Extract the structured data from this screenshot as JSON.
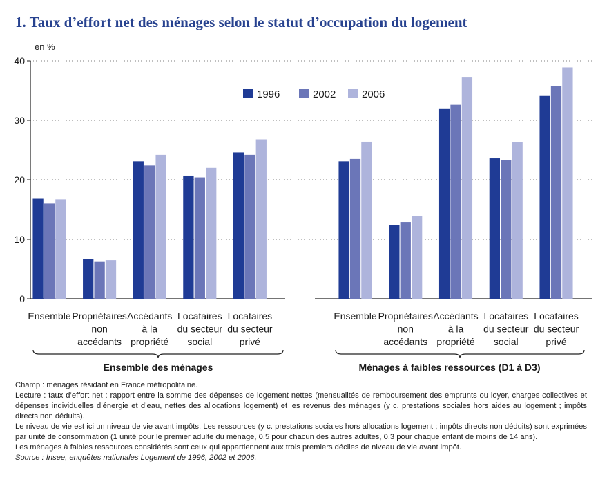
{
  "title": "1. Taux d’effort net des ménages selon le statut d’occupation du logement",
  "unit_label": "en %",
  "colors": {
    "1996": "#1f3b95",
    "2002": "#6b76b8",
    "2006": "#aeb4dc",
    "axis": "#222222"
  },
  "chart_data": {
    "type": "bar",
    "ylim": [
      0,
      40
    ],
    "yticks": [
      0,
      10,
      20,
      30,
      40
    ],
    "legend": {
      "position": "top-right",
      "entries": [
        "1996",
        "2002",
        "2006"
      ]
    },
    "categories": [
      [
        "Ensemble"
      ],
      [
        "Propriétaires",
        "non",
        "accédants"
      ],
      [
        "Accédants",
        "à la",
        "propriété"
      ],
      [
        "Locataires",
        "du secteur",
        "social"
      ],
      [
        "Locataires",
        "du secteur",
        "privé"
      ]
    ],
    "panels": [
      {
        "group_label": "Ensemble des ménages",
        "series": [
          {
            "name": "1996",
            "values": [
              16.8,
              6.7,
              23.1,
              20.7,
              24.6
            ]
          },
          {
            "name": "2002",
            "values": [
              16.0,
              6.2,
              22.4,
              20.4,
              24.2
            ]
          },
          {
            "name": "2006",
            "values": [
              16.7,
              6.5,
              24.2,
              22.0,
              26.8
            ]
          }
        ]
      },
      {
        "group_label": "Ménages à faibles ressources (D1 à D3)",
        "series": [
          {
            "name": "1996",
            "values": [
              23.1,
              12.4,
              32.0,
              23.6,
              34.1
            ]
          },
          {
            "name": "2002",
            "values": [
              23.5,
              12.9,
              32.6,
              23.3,
              35.8
            ]
          },
          {
            "name": "2006",
            "values": [
              26.4,
              13.9,
              37.2,
              26.3,
              38.9
            ]
          }
        ]
      }
    ]
  },
  "notes": {
    "champ": "Champ : ménages résidant en France métropolitaine.",
    "lecture": "Lecture : taux d’effort net : rapport entre la somme des dépenses de logement nettes (mensualités de remboursement des emprunts ou loyer, charges collectives et dépenses individuelles d’énergie et d’eau, nettes des allocations logement) et les revenus des ménages (y c. prestations sociales hors aides au logement ; impôts directs non déduits).",
    "niveau": "Le niveau de vie est ici un niveau de vie avant impôts. Les ressources (y c. prestations sociales hors allocations logement ; impôts directs non déduits) sont exprimées par unité de consommation (1 unité pour le premier adulte du ménage, 0,5 pour chacun des autres adultes, 0,3 pour chaque enfant de moins de 14 ans).",
    "faibles": "Les ménages à faibles ressources considérés sont ceux qui appartiennent aux trois premiers déciles de niveau de vie avant impôt.",
    "source": "Source : Insee, enquêtes nationales Logement de 1996, 2002 et 2006."
  }
}
